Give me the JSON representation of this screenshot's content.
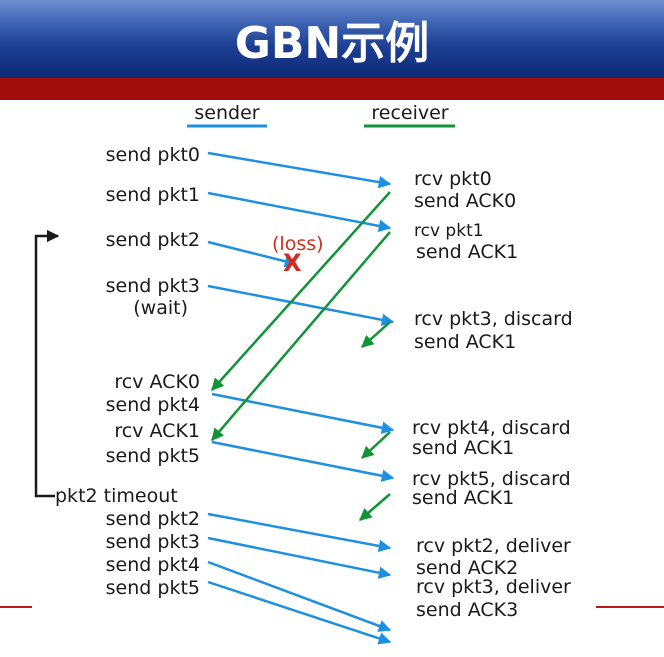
{
  "title": "GBN示例",
  "columns": {
    "sender": "sender",
    "receiver": "receiver"
  },
  "loss_label": "(loss)",
  "loss_mark": "X",
  "sender_events": [
    "send pkt0",
    "send pkt1",
    "send pkt2",
    "send pkt3",
    "(wait)",
    "rcv ACK0",
    "send pkt4",
    "rcv ACK1",
    "send pkt5",
    "pkt2 timeout",
    "send pkt2",
    "send pkt3",
    "send pkt4",
    "send pkt5"
  ],
  "receiver_events": [
    "rcv pkt0",
    "send ACK0",
    "rcv pkt1",
    "send ACK1",
    "rcv pkt3, discard",
    "send ACK1",
    "rcv pkt4, discard",
    "send ACK1",
    "rcv pkt5, discard",
    "send ACK1",
    "rcv pkt2, deliver",
    "send ACK2",
    "rcv pkt3, deliver",
    "send ACK3"
  ],
  "colors": {
    "packet_arrow": "#1e8fe1",
    "ack_arrow": "#129338",
    "loss": "#d42b1e",
    "title_bg": "#1d3e93",
    "band": "#a10d0d"
  }
}
